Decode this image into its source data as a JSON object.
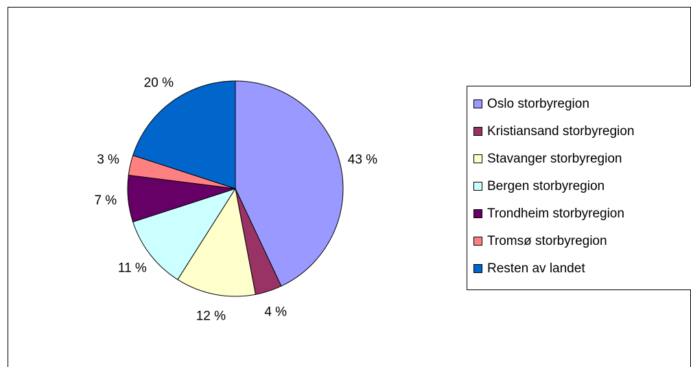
{
  "chart_data": {
    "type": "pie",
    "categories": [
      "Oslo storbyregion",
      "Kristiansand storbyregion",
      "Stavanger storbyregion",
      "Bergen storbyregion",
      "Trondheim storbyregion",
      "Tromsø storbyregion",
      "Resten av landet"
    ],
    "values": [
      43,
      4,
      12,
      11,
      7,
      3,
      20
    ],
    "value_labels": [
      "43 %",
      "4 %",
      "12 %",
      "11 %",
      "7 %",
      "3 %",
      "20 %"
    ],
    "colors": [
      "#9999ff",
      "#993366",
      "#ffffcc",
      "#ccffff",
      "#660066",
      "#ff8080",
      "#0066cc"
    ],
    "legend": "right"
  }
}
